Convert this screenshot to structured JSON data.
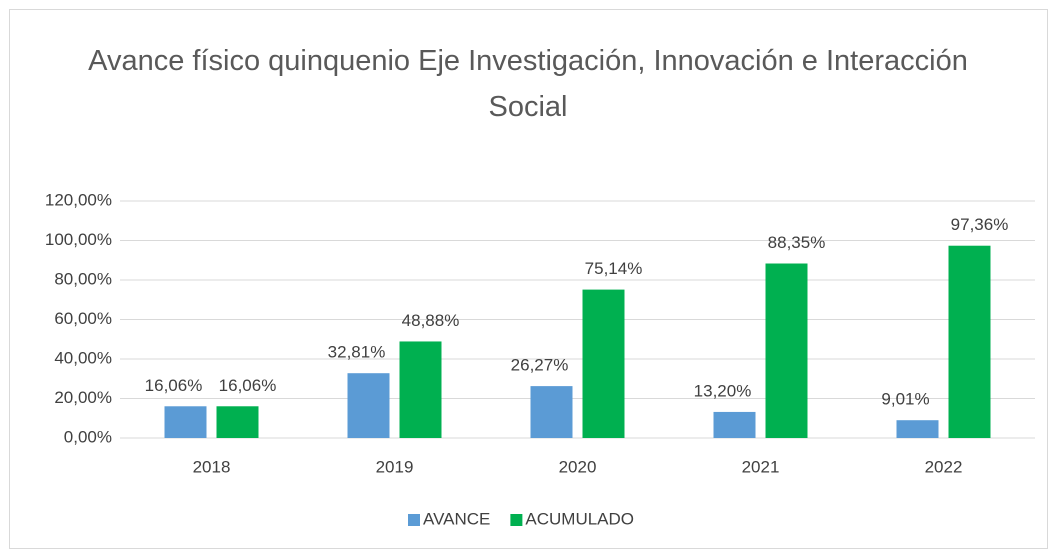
{
  "chart_data": {
    "type": "bar",
    "title": "Avance físico quinquenio Eje Investigación, Innovación e Interacción Social",
    "categories": [
      "2018",
      "2019",
      "2020",
      "2021",
      "2022"
    ],
    "series": [
      {
        "name": "AVANCE",
        "color": "#5b9bd5",
        "values": [
          16.06,
          32.81,
          26.27,
          13.2,
          9.01
        ],
        "value_labels": [
          "16,06%",
          "32,81%",
          "26,27%",
          "13,20%",
          "9,01%"
        ]
      },
      {
        "name": "ACUMULADO",
        "color": "#00b050",
        "values": [
          16.06,
          48.88,
          75.14,
          88.35,
          97.36
        ],
        "value_labels": [
          "16,06%",
          "48,88%",
          "75,14%",
          "88,35%",
          "97,36%"
        ]
      }
    ],
    "ylim": [
      0,
      120
    ],
    "yticks": [
      {
        "value": 0,
        "label": "0,00%"
      },
      {
        "value": 20,
        "label": "20,00%"
      },
      {
        "value": 40,
        "label": "40,00%"
      },
      {
        "value": 60,
        "label": "60,00%"
      },
      {
        "value": 80,
        "label": "80,00%"
      },
      {
        "value": 100,
        "label": "100,00%"
      },
      {
        "value": 120,
        "label": "120,00%"
      }
    ],
    "grid": true,
    "legend": "bottom"
  }
}
